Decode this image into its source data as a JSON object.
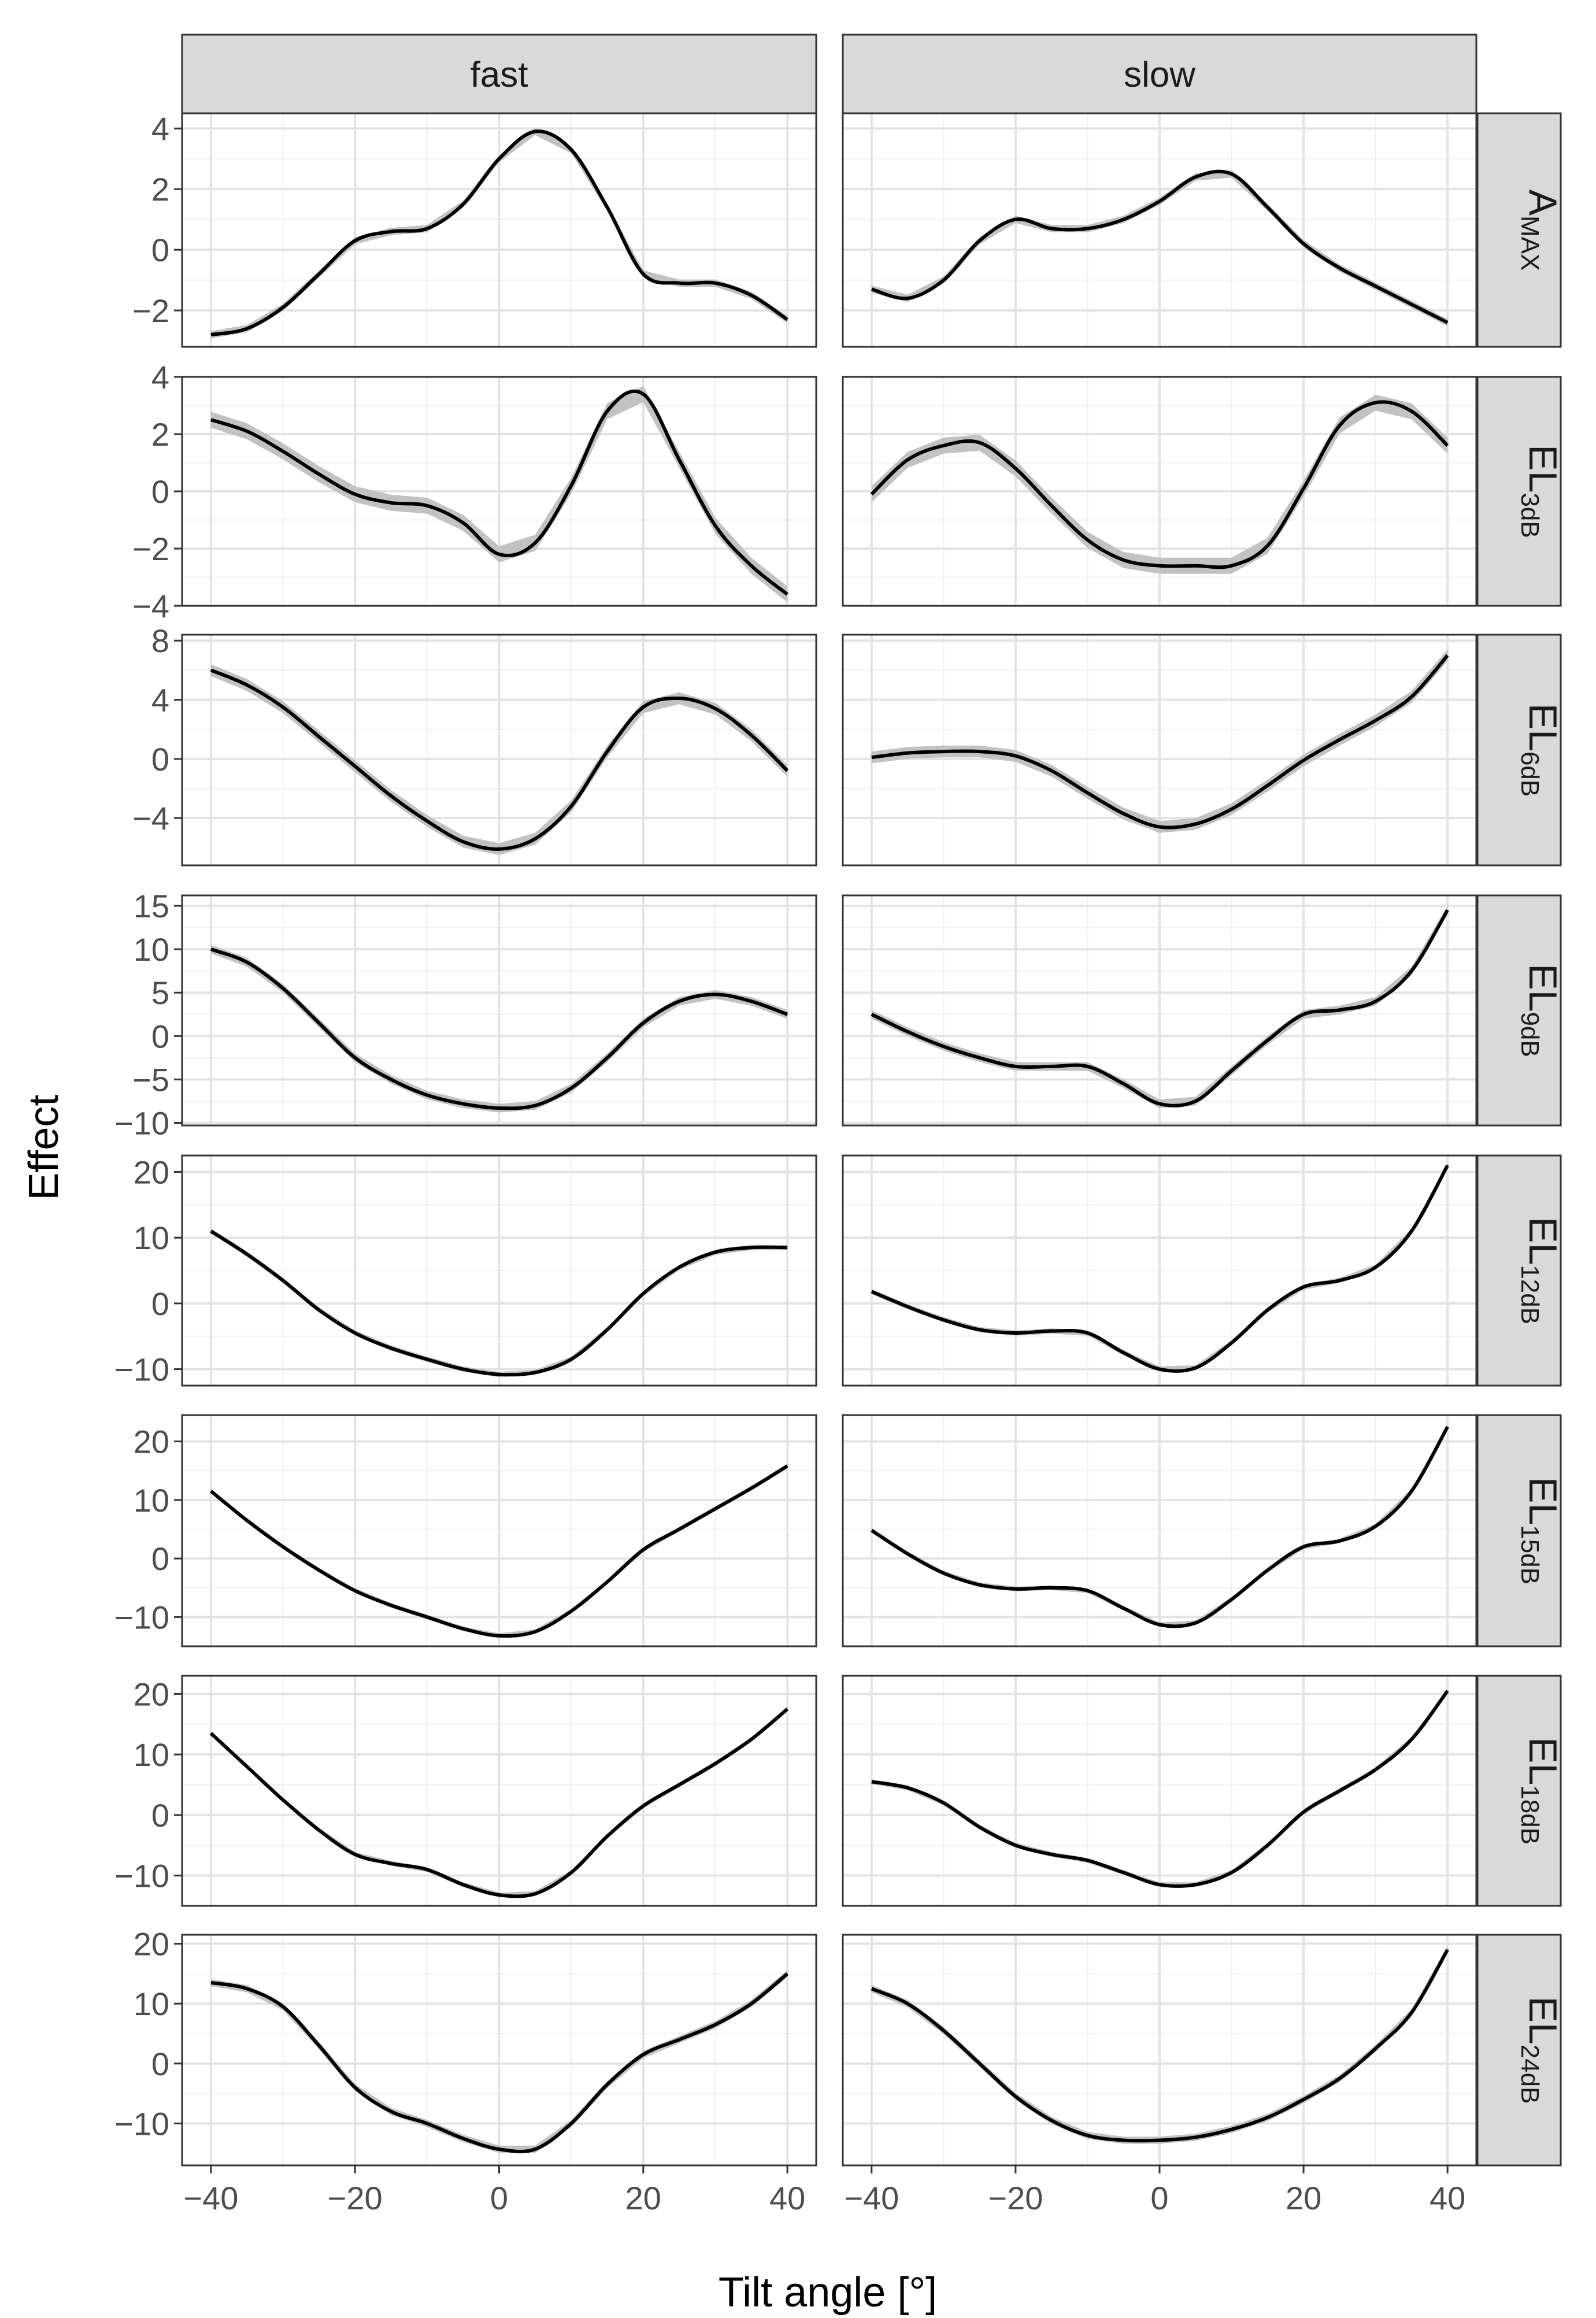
{
  "chart_data": {
    "type": "line",
    "layout": "facet-grid",
    "xlabel": "Tilt angle [°]",
    "ylabel": "Effect",
    "xlim": [
      -44,
      44
    ],
    "x_ticks": [
      -40,
      -20,
      0,
      20,
      40
    ],
    "x_tick_labels": [
      "−40",
      "−20",
      "0",
      "20",
      "40"
    ],
    "columns": [
      "fast",
      "slow"
    ],
    "x": [
      -40,
      -35,
      -30,
      -25,
      -20,
      -15,
      -10,
      -5,
      0,
      5,
      10,
      15,
      20,
      25,
      30,
      35,
      40
    ],
    "rows": [
      {
        "label_main": "A",
        "label_sub": "MAX",
        "ylim": [
          -3.2,
          4.5
        ],
        "y_ticks": [
          -2,
          0,
          2,
          4
        ],
        "y_tick_labels": [
          "−2",
          "0",
          "2",
          "4"
        ],
        "band": 0.12,
        "series": [
          {
            "panel": "fast",
            "values": [
              -2.8,
              -2.6,
              -1.9,
              -0.8,
              0.3,
              0.6,
              0.7,
              1.5,
              3.0,
              3.9,
              3.3,
              1.4,
              -0.8,
              -1.1,
              -1.1,
              -1.5,
              -2.3
            ]
          },
          {
            "panel": "slow",
            "values": [
              -1.3,
              -1.6,
              -1.0,
              0.3,
              1.0,
              0.7,
              0.7,
              1.0,
              1.6,
              2.4,
              2.5,
              1.4,
              0.2,
              -0.6,
              -1.2,
              -1.8,
              -2.4
            ]
          }
        ]
      },
      {
        "label_main": "EL",
        "label_sub": "3dB",
        "ylim": [
          -4.0,
          4.0
        ],
        "y_ticks": [
          -4,
          -2,
          0,
          2,
          4
        ],
        "y_tick_labels": [
          "−4",
          "−2",
          "0",
          "2",
          "4"
        ],
        "band": 0.28,
        "series": [
          {
            "panel": "fast",
            "values": [
              2.5,
              2.1,
              1.4,
              0.6,
              -0.1,
              -0.4,
              -0.5,
              -1.1,
              -2.2,
              -1.8,
              0.2,
              2.8,
              3.4,
              1.1,
              -1.2,
              -2.6,
              -3.6
            ]
          },
          {
            "panel": "slow",
            "values": [
              -0.1,
              1.1,
              1.6,
              1.7,
              0.8,
              -0.5,
              -1.7,
              -2.4,
              -2.6,
              -2.6,
              -2.6,
              -1.9,
              0.1,
              2.3,
              3.1,
              2.8,
              1.6
            ]
          }
        ]
      },
      {
        "label_main": "EL",
        "label_sub": "6dB",
        "ylim": [
          -7.2,
          8.4
        ],
        "y_ticks": [
          -4,
          0,
          4,
          8
        ],
        "y_tick_labels": [
          "−4",
          "0",
          "4",
          "8"
        ],
        "band": 0.4,
        "series": [
          {
            "panel": "fast",
            "values": [
              6.0,
              5.0,
              3.5,
              1.5,
              -0.5,
              -2.5,
              -4.2,
              -5.6,
              -6.1,
              -5.4,
              -3.2,
              0.5,
              3.5,
              4.1,
              3.4,
              1.6,
              -0.8
            ]
          },
          {
            "panel": "slow",
            "values": [
              0.1,
              0.4,
              0.5,
              0.5,
              0.2,
              -0.8,
              -2.3,
              -3.7,
              -4.6,
              -4.4,
              -3.4,
              -1.8,
              -0.1,
              1.3,
              2.6,
              4.2,
              7.0
            ]
          }
        ]
      },
      {
        "label_main": "EL",
        "label_sub": "9dB",
        "ylim": [
          -10.3,
          16.2
        ],
        "y_ticks": [
          -10,
          -5,
          0,
          5,
          10,
          15
        ],
        "y_tick_labels": [
          "−10",
          "−5",
          "0",
          "5",
          "10",
          "15"
        ],
        "band": 0.5,
        "series": [
          {
            "panel": "fast",
            "values": [
              10.0,
              8.5,
              5.5,
              1.5,
              -2.5,
              -5.0,
              -6.8,
              -7.8,
              -8.3,
              -8.0,
              -6.0,
              -2.5,
              1.5,
              4.0,
              4.8,
              4.0,
              2.5
            ]
          },
          {
            "panel": "slow",
            "values": [
              2.5,
              0.5,
              -1.2,
              -2.5,
              -3.5,
              -3.5,
              -3.5,
              -5.5,
              -7.8,
              -7.5,
              -4.0,
              -0.5,
              2.5,
              3.0,
              4.0,
              7.5,
              14.5
            ]
          }
        ]
      },
      {
        "label_main": "EL",
        "label_sub": "12dB",
        "ylim": [
          -12.5,
          22.5
        ],
        "y_ticks": [
          -10,
          0,
          10,
          20
        ],
        "y_tick_labels": [
          "−10",
          "0",
          "10",
          "20"
        ],
        "band": 0.4,
        "series": [
          {
            "panel": "fast",
            "values": [
              11.0,
              7.5,
              3.5,
              -1.0,
              -4.5,
              -6.8,
              -8.5,
              -10.0,
              -10.8,
              -10.5,
              -8.5,
              -4.0,
              1.5,
              5.5,
              7.8,
              8.5,
              8.5
            ]
          },
          {
            "panel": "slow",
            "values": [
              1.8,
              -0.5,
              -2.5,
              -4.0,
              -4.5,
              -4.2,
              -4.5,
              -7.5,
              -10.0,
              -9.8,
              -6.0,
              -1.0,
              2.5,
              3.5,
              5.5,
              11.0,
              21.0
            ]
          }
        ]
      },
      {
        "label_main": "EL",
        "label_sub": "15dB",
        "ylim": [
          -15.0,
          24.5
        ],
        "y_ticks": [
          -10,
          0,
          10,
          20
        ],
        "y_tick_labels": [
          "−10",
          "0",
          "10",
          "20"
        ],
        "band": 0.4,
        "series": [
          {
            "panel": "fast",
            "values": [
              11.5,
              6.5,
              2.0,
              -2.0,
              -5.5,
              -8.0,
              -10.0,
              -12.0,
              -13.2,
              -12.5,
              -9.0,
              -4.0,
              1.5,
              5.0,
              8.5,
              12.0,
              15.8
            ]
          },
          {
            "panel": "slow",
            "values": [
              4.8,
              0.8,
              -2.5,
              -4.5,
              -5.2,
              -5.0,
              -5.5,
              -8.5,
              -11.3,
              -11.0,
              -7.0,
              -2.0,
              2.0,
              3.0,
              5.5,
              11.5,
              22.5
            ]
          }
        ]
      },
      {
        "label_main": "EL",
        "label_sub": "18dB",
        "ylim": [
          -15.0,
          23.0
        ],
        "y_ticks": [
          -10,
          0,
          10,
          20
        ],
        "y_tick_labels": [
          "−10",
          "0",
          "10",
          "20"
        ],
        "band": 0.4,
        "series": [
          {
            "panel": "fast",
            "values": [
              13.5,
              8.0,
              2.5,
              -2.5,
              -6.5,
              -8.0,
              -9.0,
              -11.5,
              -13.2,
              -13.0,
              -9.5,
              -3.5,
              1.5,
              5.0,
              8.5,
              12.5,
              17.5
            ]
          },
          {
            "panel": "slow",
            "values": [
              5.5,
              4.5,
              2.0,
              -2.0,
              -5.0,
              -6.5,
              -7.5,
              -9.5,
              -11.5,
              -11.5,
              -9.5,
              -5.0,
              0.5,
              4.0,
              7.5,
              12.5,
              20.5
            ]
          }
        ]
      },
      {
        "label_main": "EL",
        "label_sub": "24dB",
        "ylim": [
          -17.0,
          21.5
        ],
        "y_ticks": [
          -10,
          0,
          10,
          20
        ],
        "y_tick_labels": [
          "−10",
          "0",
          "10",
          "20"
        ],
        "band": 0.6,
        "series": [
          {
            "panel": "fast",
            "values": [
              13.5,
              12.5,
              9.5,
              3.0,
              -4.0,
              -8.0,
              -10.0,
              -12.5,
              -14.3,
              -14.3,
              -10.0,
              -3.5,
              1.5,
              4.0,
              6.5,
              10.0,
              15.0
            ]
          },
          {
            "panel": "slow",
            "values": [
              12.5,
              10.0,
              5.5,
              0.0,
              -5.5,
              -9.5,
              -12.0,
              -12.8,
              -12.8,
              -12.3,
              -11.0,
              -9.0,
              -6.0,
              -2.5,
              2.5,
              8.5,
              19.0
            ]
          }
        ]
      }
    ]
  }
}
